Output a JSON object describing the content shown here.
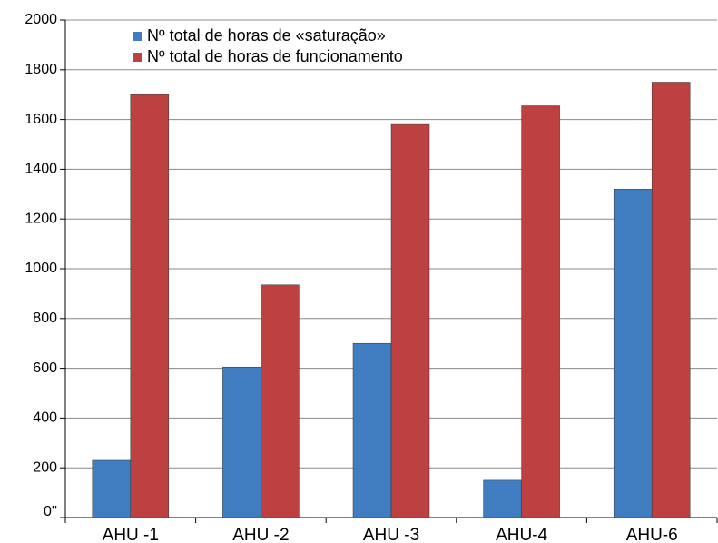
{
  "chart_data": {
    "type": "bar",
    "categories": [
      "AHU -1",
      "AHU -2",
      "AHU -3",
      "AHU-4",
      "AHU-6"
    ],
    "series": [
      {
        "name": "Nº total de horas de «saturação»",
        "color": "#3f7dc0",
        "values": [
          230,
          605,
          700,
          150,
          1320
        ]
      },
      {
        "name": "Nº total de horas de funcionamento",
        "color": "#be4141",
        "values": [
          1700,
          935,
          1580,
          1655,
          1750
        ]
      }
    ],
    "ylim": [
      0,
      2000
    ],
    "yticks": [
      {
        "value": 0,
        "label": "0''"
      },
      200,
      400,
      600,
      800,
      1000,
      1200,
      1400,
      1600,
      1800,
      2000
    ],
    "grid": true,
    "legend": "upper left"
  }
}
